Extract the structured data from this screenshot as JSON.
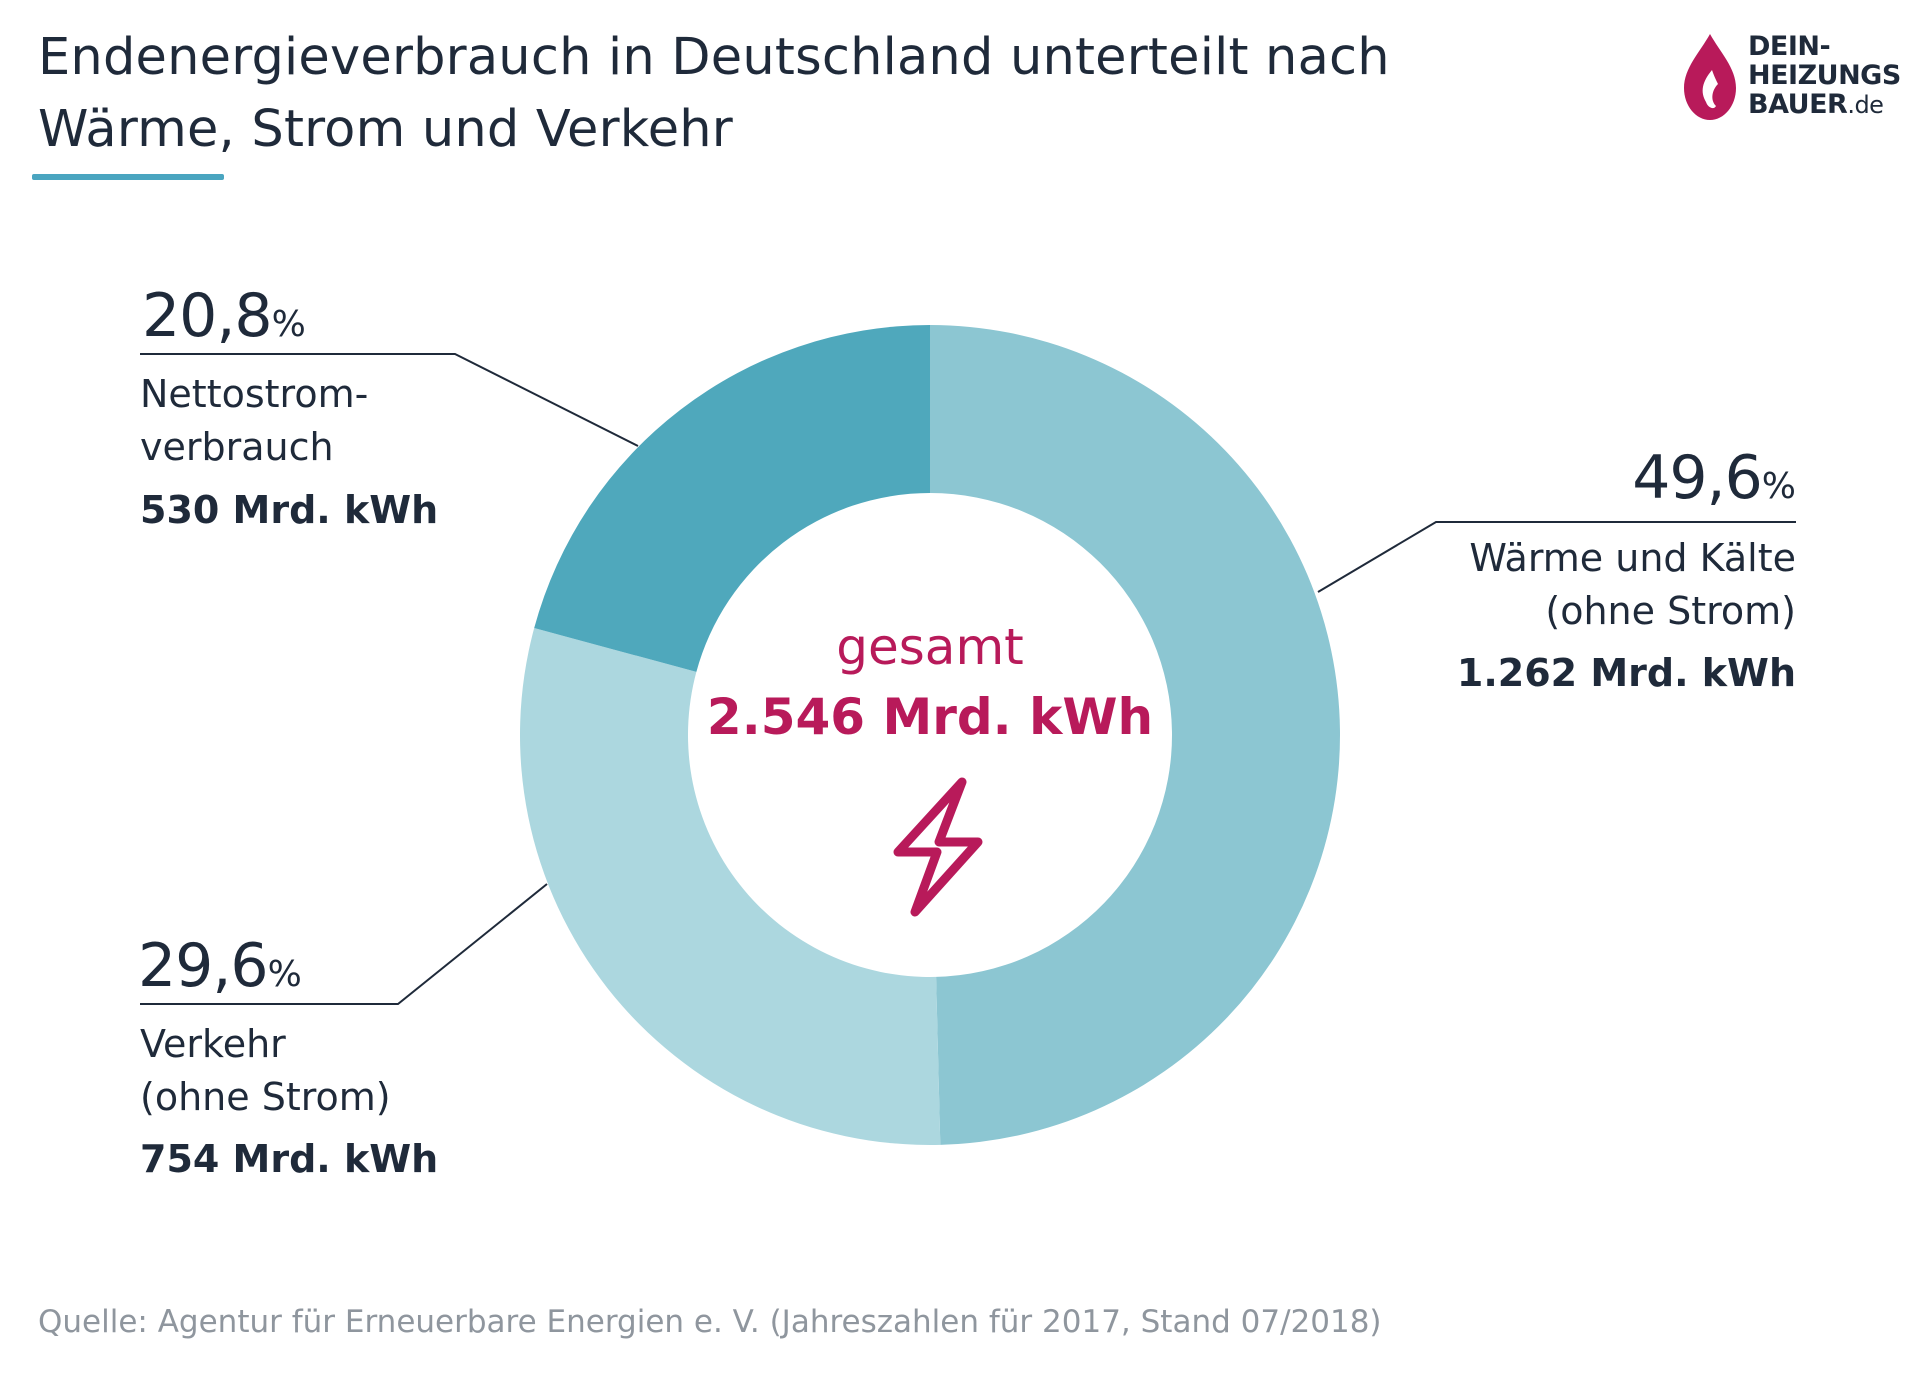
{
  "title_lines": [
    "Endenergieverbrauch in Deutschland unterteilt nach",
    "Wärme, Strom und Verkehr"
  ],
  "logo": {
    "lines": [
      "DEIN-",
      "HEIZUNGS",
      "BAUER"
    ],
    "suffix": ".de",
    "color": "#b81a5a"
  },
  "chart_data": {
    "type": "pie",
    "variant": "donut",
    "center": {
      "title": "gesamt",
      "total": "2.546 Mrd. kWh",
      "icon": "lightning-bolt-icon"
    },
    "segments": [
      {
        "key": "waerme",
        "percent": 49.6,
        "percent_label": "49,6",
        "label_lines": [
          "Wärme und Kälte",
          "(ohne Strom)"
        ],
        "value_label": "1.262 Mrd. kWh",
        "color": "#8cc6d2"
      },
      {
        "key": "verkehr",
        "percent": 29.6,
        "percent_label": "29,6",
        "label_lines": [
          "Verkehr",
          "(ohne Strom)"
        ],
        "value_label": "754 Mrd. kWh",
        "color": "#acd7df"
      },
      {
        "key": "strom",
        "percent": 20.8,
        "percent_label": "20,8",
        "label_lines": [
          "Nettostrom-",
          "verbrauch"
        ],
        "value_label": "530 Mrd. kWh",
        "color": "#4fa8bc"
      }
    ],
    "percent_unit": "%",
    "start_angle": "12 o'clock",
    "direction": "clockwise"
  },
  "accent_color": "#b81a5a",
  "underline_color": "#4aa5c0",
  "source": "Quelle: Agentur für Erneuerbare Energien e. V. (Jahreszahlen für 2017, Stand 07/2018)"
}
